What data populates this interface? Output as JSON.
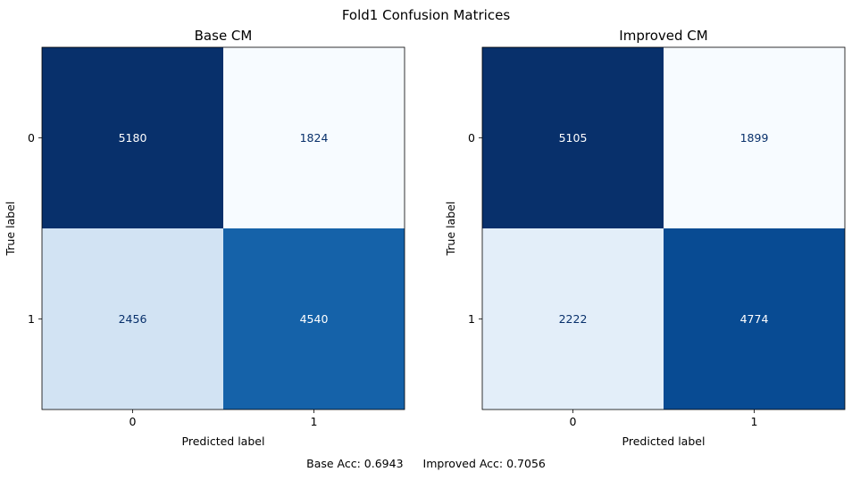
{
  "figure": {
    "title": "Fold1 Confusion Matrices"
  },
  "chart_data": [
    {
      "type": "heatmap",
      "title": "Base CM",
      "xlabel": "Predicted label",
      "ylabel": "True label",
      "x_categories": [
        "0",
        "1"
      ],
      "y_categories": [
        "0",
        "1"
      ],
      "values": [
        [
          5180,
          1824
        ],
        [
          2456,
          4540
        ]
      ],
      "colormap": "Blues",
      "grid": false,
      "colorbar": false
    },
    {
      "type": "heatmap",
      "title": "Improved CM",
      "xlabel": "Predicted label",
      "ylabel": "True label",
      "x_categories": [
        "0",
        "1"
      ],
      "y_categories": [
        "0",
        "1"
      ],
      "values": [
        [
          5105,
          1899
        ],
        [
          2222,
          4774
        ]
      ],
      "colormap": "Blues",
      "grid": false,
      "colorbar": false
    }
  ],
  "footer": {
    "base_acc": "Base Acc: 0.6943",
    "improved_acc": "Improved Acc: 0.7056"
  }
}
